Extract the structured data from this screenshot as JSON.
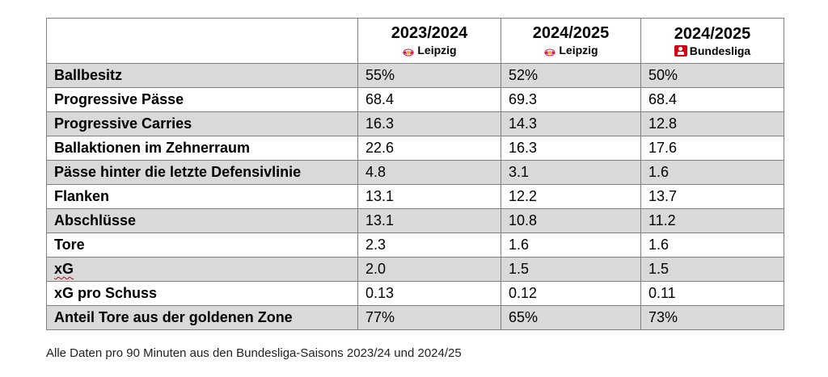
{
  "header": {
    "columns": [
      {
        "season": "2023/2024",
        "team": "Leipzig",
        "logo": "rb-leipzig-logo"
      },
      {
        "season": "2024/2025",
        "team": "Leipzig",
        "logo": "rb-leipzig-logo"
      },
      {
        "season": "2024/2025",
        "team": "Bundesliga",
        "logo": "bundesliga-logo"
      }
    ]
  },
  "rows": [
    {
      "label": "Ballbesitz",
      "values": [
        "55%",
        "52%",
        "50%"
      ],
      "shaded": true
    },
    {
      "label": "Progressive Pässe",
      "values": [
        "68.4",
        "69.3",
        "68.4"
      ],
      "shaded": false
    },
    {
      "label": "Progressive Carries",
      "values": [
        "16.3",
        "14.3",
        "12.8"
      ],
      "shaded": true
    },
    {
      "label": "Ballaktionen im Zehnerraum",
      "values": [
        "22.6",
        "16.3",
        "17.6"
      ],
      "shaded": false
    },
    {
      "label": "Pässe hinter die letzte Defensivlinie",
      "values": [
        "4.8",
        "3.1",
        "1.6"
      ],
      "shaded": true
    },
    {
      "label": "Flanken",
      "values": [
        "13.1",
        "12.2",
        "13.7"
      ],
      "shaded": false
    },
    {
      "label": "Abschlüsse",
      "values": [
        "13.1",
        "10.8",
        "11.2"
      ],
      "shaded": true
    },
    {
      "label": "Tore",
      "values": [
        "2.3",
        "1.6",
        "1.6"
      ],
      "shaded": false
    },
    {
      "label": "xG",
      "values": [
        "2.0",
        "1.5",
        "1.5"
      ],
      "shaded": true
    },
    {
      "label": "xG pro Schuss",
      "values": [
        "0.13",
        "0.12",
        "0.11"
      ],
      "shaded": false
    },
    {
      "label": "Anteil Tore aus der goldenen Zone",
      "values": [
        "77%",
        "65%",
        "73%"
      ],
      "shaded": true
    }
  ],
  "footnote": "Alle Daten pro 90 Minuten aus den Bundesliga-Saisons 2023/24 und 2024/25",
  "colors": {
    "shaded_row": "#d9d9d9",
    "border": "#7f7f7f",
    "bundesliga_red": "#d20515",
    "rb_red": "#dd0741"
  }
}
